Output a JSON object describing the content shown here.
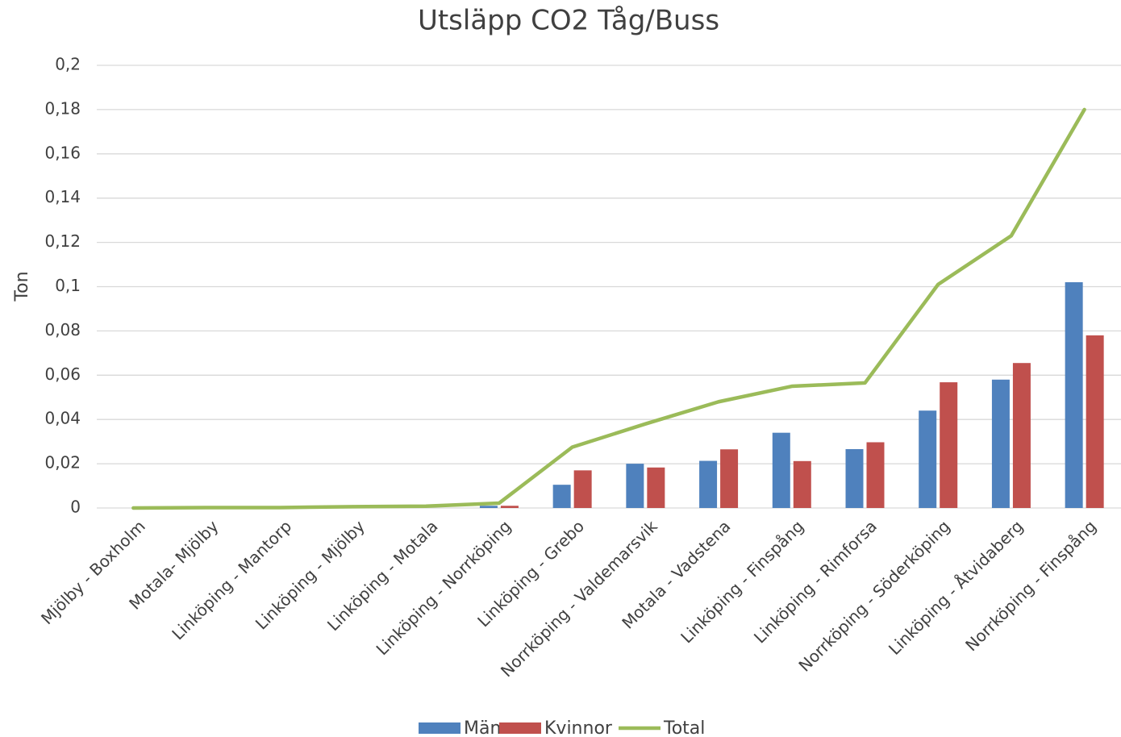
{
  "chart_data": {
    "type": "bar",
    "title": "Utsläpp CO2 Tåg/Buss",
    "y_label": "Ton",
    "categories": [
      "Mjölby - Boxholm",
      "Motala- Mjölby",
      "Linköping - Mantorp",
      "Linköping - Mjölby",
      "Linköping - Motala",
      "Linköping - Norrköping",
      "Linköping - Grebo",
      "Norrköping - Valdemarsvik",
      "Motala - Vadstena",
      "Linköping - Finspång",
      "Linköping - Rimforsa",
      "Norrköping - Söderköping",
      "Linköping - Åtvidaberg",
      "Norrköping - Finspång"
    ],
    "series": [
      {
        "name": "Män",
        "type": "bar",
        "color": "#4f81bd",
        "values": [
          0,
          0,
          0,
          0,
          0,
          0.001,
          0.0105,
          0.02,
          0.0213,
          0.034,
          0.0266,
          0.044,
          0.058,
          0.102
        ]
      },
      {
        "name": "Kvinnor",
        "type": "bar",
        "color": "#c0504d",
        "values": [
          0,
          0,
          0,
          0,
          0,
          0.001,
          0.017,
          0.0183,
          0.0265,
          0.0212,
          0.0297,
          0.0568,
          0.0655,
          0.078
        ]
      },
      {
        "name": "Total",
        "type": "line",
        "color": "#9bbb59",
        "values": [
          0,
          0.0002,
          0.0002,
          0.0006,
          0.0008,
          0.0022,
          0.0275,
          0.038,
          0.048,
          0.055,
          0.0565,
          0.101,
          0.123,
          0.18
        ]
      }
    ],
    "ylim": [
      0,
      0.2
    ],
    "yticks": [
      0,
      {
        "value": 0.02,
        "label": "0,02"
      },
      {
        "value": 0.04,
        "label": "0,04"
      },
      {
        "value": 0.06,
        "label": "0,06"
      },
      {
        "value": 0.08,
        "label": "0,08"
      },
      {
        "value": 0.1,
        "label": "0,1"
      },
      {
        "value": 0.12,
        "label": "0,12"
      },
      {
        "value": 0.14,
        "label": "0,14"
      },
      {
        "value": 0.16,
        "label": "0,16"
      },
      {
        "value": 0.18,
        "label": "0,18"
      },
      {
        "value": 0.2,
        "label": "0,2"
      }
    ],
    "grid": true,
    "legend": "bottom"
  }
}
